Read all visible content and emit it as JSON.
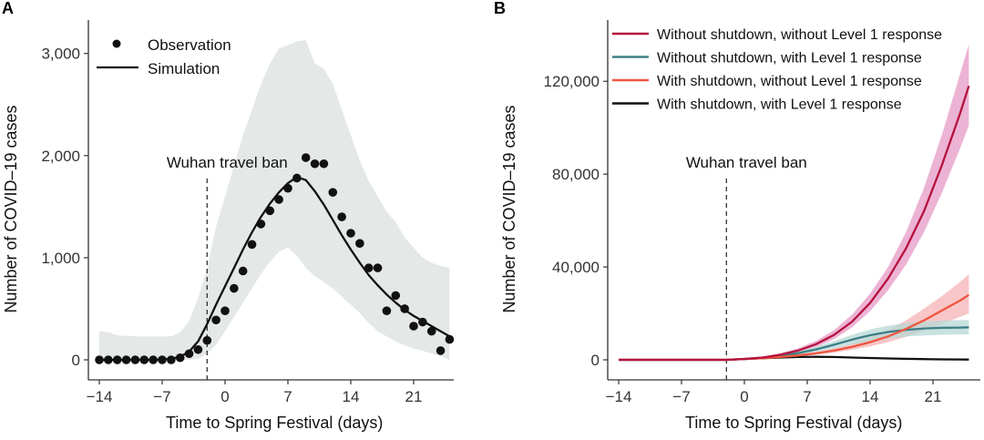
{
  "chart_data": [
    {
      "panel": "A",
      "type": "scatter",
      "xlabel": "Time to Spring Festival (days)",
      "ylabel": "Number of COVID–19 cases",
      "xlim": [
        -15.5,
        27
      ],
      "ylim": [
        -150,
        3200
      ],
      "xticks": [
        -14,
        -7,
        0,
        7,
        14,
        21
      ],
      "xtick_labels": [
        "−14",
        "−7",
        "0",
        "7",
        "14",
        "21"
      ],
      "yticks": [
        0,
        1000,
        2000,
        3000
      ],
      "ytick_labels": [
        "0",
        "1,000",
        "2,000",
        "3,000"
      ],
      "annotation": {
        "text": "Wuhan travel ban",
        "x": -2
      },
      "legend": [
        {
          "label": "Observation",
          "kind": "point"
        },
        {
          "label": "Simulation",
          "kind": "line"
        }
      ],
      "legend_position": "top-left",
      "observation": {
        "x": [
          -14,
          -13,
          -12,
          -11,
          -10,
          -9,
          -8,
          -7,
          -6,
          -5,
          -4,
          -3,
          -2,
          -1,
          0,
          1,
          2,
          3,
          4,
          5,
          6,
          7,
          8,
          9,
          10,
          11,
          12,
          13,
          14,
          15,
          16,
          17,
          18,
          19,
          20,
          21,
          22,
          23,
          24,
          25
        ],
        "y": [
          0,
          0,
          0,
          0,
          0,
          0,
          0,
          0,
          0,
          20,
          60,
          100,
          190,
          390,
          480,
          700,
          870,
          1130,
          1330,
          1460,
          1570,
          1680,
          1780,
          1980,
          1920,
          1920,
          1640,
          1400,
          1240,
          1140,
          900,
          900,
          480,
          630,
          500,
          330,
          370,
          280,
          90,
          200
        ]
      },
      "simulation": {
        "x": [
          -14,
          -12,
          -10,
          -8,
          -6,
          -5,
          -4,
          -3,
          -2,
          -1,
          0,
          1,
          2,
          3,
          4,
          5,
          6,
          7,
          8,
          9,
          10,
          11,
          12,
          13,
          14,
          15,
          16,
          17,
          18,
          19,
          20,
          21,
          22,
          23,
          24,
          25
        ],
        "y": [
          0,
          0,
          0,
          0,
          10,
          30,
          80,
          180,
          350,
          540,
          720,
          900,
          1080,
          1250,
          1400,
          1530,
          1640,
          1730,
          1790,
          1760,
          1650,
          1520,
          1370,
          1220,
          1080,
          950,
          830,
          730,
          640,
          560,
          490,
          430,
          380,
          330,
          280,
          230
        ]
      },
      "band": {
        "x": [
          -14,
          -13,
          -12,
          -10,
          -8,
          -6,
          -5,
          -4,
          -3,
          -2,
          -1,
          0,
          1,
          2,
          3,
          4,
          5,
          6,
          7,
          8,
          9,
          10,
          11,
          12,
          13,
          14,
          15,
          16,
          17,
          18,
          19,
          20,
          21,
          22,
          23,
          24,
          25
        ],
        "lower": [
          0,
          0,
          0,
          0,
          0,
          0,
          0,
          0,
          10,
          60,
          150,
          280,
          420,
          560,
          700,
          840,
          960,
          1060,
          1100,
          1020,
          900,
          820,
          760,
          700,
          620,
          540,
          460,
          360,
          280,
          230,
          180,
          140,
          110,
          90,
          60,
          40,
          0
        ],
        "upper": [
          280,
          270,
          240,
          230,
          230,
          230,
          270,
          380,
          600,
          900,
          1300,
          1600,
          1900,
          2200,
          2450,
          2700,
          2900,
          3050,
          3080,
          3120,
          3130,
          2900,
          2850,
          2700,
          2450,
          2200,
          1950,
          1750,
          1600,
          1450,
          1350,
          1200,
          1100,
          1000,
          950,
          920,
          900
        ]
      },
      "colors": {
        "band": "#e4e8e7",
        "line": "#111111",
        "point": "#111111"
      }
    },
    {
      "panel": "B",
      "type": "line",
      "xlabel": "Time to Spring Festival (days)",
      "ylabel": "Number of COVID–19 cases",
      "xlim": [
        -15.5,
        27
      ],
      "ylim": [
        -5000,
        145000
      ],
      "xticks": [
        -14,
        -7,
        0,
        7,
        14,
        21
      ],
      "xtick_labels": [
        "−14",
        "−7",
        "0",
        "7",
        "14",
        "21"
      ],
      "yticks": [
        0,
        40000,
        80000,
        120000
      ],
      "ytick_labels": [
        "0",
        "40,000",
        "80,000",
        "120,000"
      ],
      "annotation": {
        "text": "Wuhan travel ban",
        "x": -2
      },
      "legend_position": "top",
      "x": [
        -14,
        -10,
        -6,
        -2,
        0,
        2,
        4,
        6,
        8,
        10,
        12,
        14,
        16,
        18,
        20,
        22,
        24,
        25
      ],
      "series": [
        {
          "name": "Without shutdown, without Level 1 response",
          "color": "#b5123e",
          "band_color": "#e59ac6",
          "values": [
            0,
            0,
            0,
            0,
            400,
            1000,
            2200,
            4000,
            6800,
            10800,
            16500,
            24500,
            35000,
            48000,
            64000,
            84000,
            106000,
            118000
          ],
          "lower": [
            0,
            0,
            0,
            0,
            300,
            800,
            1700,
            3200,
            5500,
            9000,
            14000,
            21000,
            30000,
            41000,
            55000,
            72000,
            91000,
            101000
          ],
          "upper": [
            0,
            0,
            0,
            0,
            500,
            1300,
            2800,
            5000,
            8200,
            12800,
            19500,
            28500,
            40000,
            55000,
            74000,
            97000,
            123000,
            136000
          ]
        },
        {
          "name": "Without shutdown, with Level 1 response",
          "color": "#3e7f86",
          "band_color": "#b7d8d6",
          "values": [
            0,
            0,
            0,
            0,
            400,
            900,
            1700,
            2900,
            4500,
            6500,
            8700,
            10600,
            12000,
            12900,
            13500,
            13800,
            13900,
            14000
          ],
          "lower": [
            0,
            0,
            0,
            0,
            300,
            700,
            1300,
            2200,
            3400,
            4900,
            6600,
            8000,
            9200,
            10000,
            10500,
            10800,
            10900,
            11000
          ],
          "upper": [
            0,
            0,
            0,
            0,
            500,
            1100,
            2100,
            3600,
            5600,
            8100,
            10800,
            13100,
            14700,
            15800,
            16500,
            16900,
            17100,
            17200
          ]
        },
        {
          "name": "With shutdown, without Level 1 response",
          "color": "#f0553e",
          "band_color": "#f6b3b5",
          "values": [
            0,
            0,
            0,
            0,
            350,
            700,
            1200,
            1900,
            2800,
            4000,
            5600,
            7600,
            10100,
            13300,
            17000,
            21300,
            25500,
            28000
          ],
          "lower": [
            0,
            0,
            0,
            0,
            280,
            560,
            950,
            1500,
            2200,
            3100,
            4300,
            5800,
            7600,
            9900,
            12500,
            15400,
            18500,
            20000
          ],
          "upper": [
            0,
            0,
            0,
            0,
            420,
            850,
            1450,
            2300,
            3400,
            5000,
            7000,
            9600,
            12900,
            17000,
            22000,
            27500,
            33500,
            37000
          ]
        },
        {
          "name": "With shutdown, with Level 1 response",
          "color": "#111111",
          "band_color": "#bbbbbb",
          "values": [
            0,
            0,
            0,
            0,
            350,
            700,
            1000,
            1200,
            1300,
            1200,
            1000,
            800,
            600,
            450,
            300,
            200,
            150,
            120
          ],
          "lower": [
            0,
            0,
            0,
            0,
            330,
            660,
            940,
            1130,
            1220,
            1130,
            940,
            750,
            560,
            420,
            280,
            180,
            130,
            100
          ],
          "upper": [
            0,
            0,
            0,
            0,
            370,
            740,
            1060,
            1270,
            1380,
            1270,
            1060,
            850,
            640,
            480,
            320,
            220,
            170,
            140
          ]
        }
      ]
    }
  ]
}
